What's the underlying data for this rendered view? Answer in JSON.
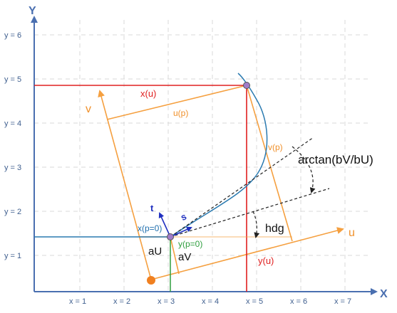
{
  "axes": {
    "x_label": "X",
    "y_label": "Y",
    "x_ticks": [
      "x = 1",
      "x = 2",
      "x = 3",
      "x = 4",
      "x = 5",
      "x = 6",
      "x = 7"
    ],
    "y_ticks": [
      "y = 1",
      "y = 2",
      "y = 3",
      "y = 4",
      "y = 5",
      "y = 6"
    ]
  },
  "labels": {
    "u_axis": "u",
    "v_axis": "v",
    "x_of_u": "x(u)",
    "y_of_u": "y(u)",
    "u_of_p": "u(p)",
    "v_of_p": "v(p)",
    "arctan": "arctan(bV/bU)",
    "hdg": "hdg",
    "x_p0": "x(p=0)",
    "y_p0": "y(p=0)",
    "aU": "aU",
    "aV": "aV",
    "t": "t",
    "s": "s"
  },
  "colors": {
    "axis": "#4a6fb0",
    "local_frame": "#f5a040",
    "curve": "#2a7ab0",
    "position": "#e02020",
    "y_p0": "#2e9e3e"
  }
}
